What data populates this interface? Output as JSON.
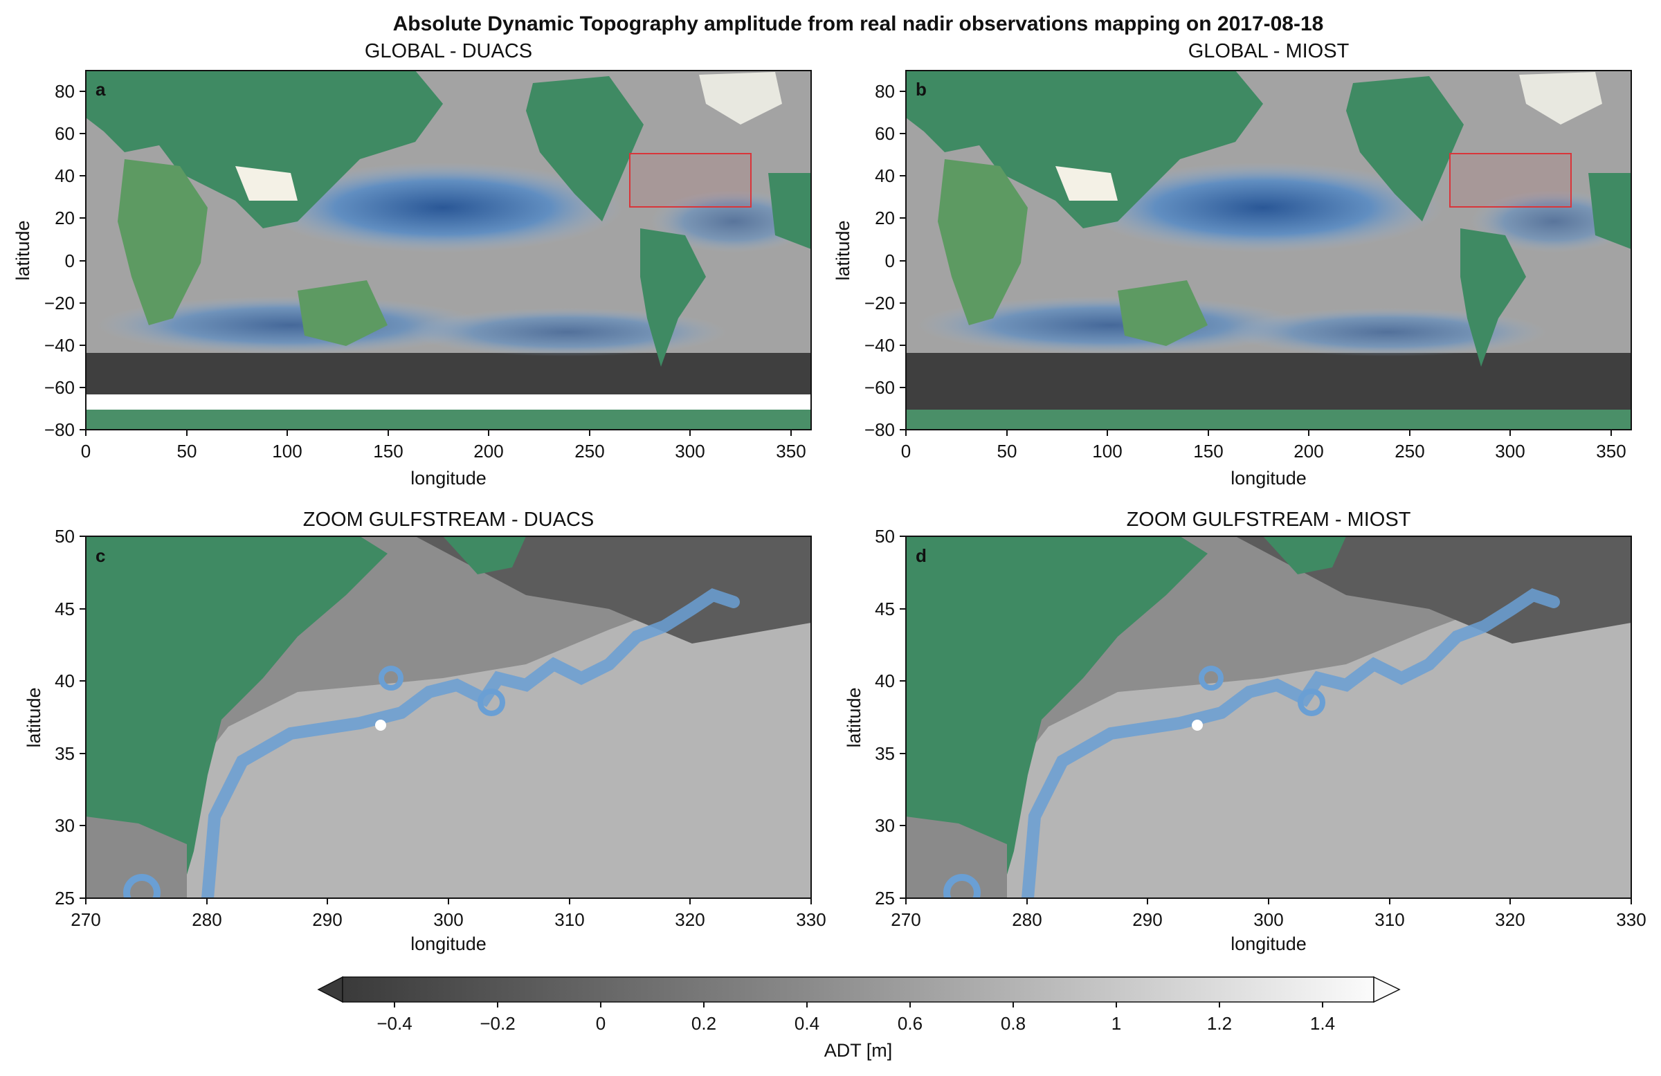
{
  "figure": {
    "suptitle": "Absolute Dynamic Topography amplitude from real nadir observations mapping on 2017-08-18"
  },
  "panels": [
    {
      "letter": "a",
      "title": "GLOBAL - DUACS",
      "xlabel": "longitude",
      "ylabel": "latitude",
      "xticks": [
        "0",
        "50",
        "100",
        "150",
        "200",
        "250",
        "300",
        "350"
      ],
      "yticks": [
        "80",
        "60",
        "40",
        "20",
        "0",
        "−20",
        "−40",
        "−60",
        "−80"
      ]
    },
    {
      "letter": "b",
      "title": "GLOBAL - MIOST",
      "xlabel": "longitude",
      "ylabel": "latitude",
      "xticks": [
        "0",
        "50",
        "100",
        "150",
        "200",
        "250",
        "300",
        "350"
      ],
      "yticks": [
        "80",
        "60",
        "40",
        "20",
        "0",
        "−20",
        "−40",
        "−60",
        "−80"
      ]
    },
    {
      "letter": "c",
      "title": "ZOOM GULFSTREAM - DUACS",
      "xlabel": "longitude",
      "ylabel": "latitude",
      "xticks": [
        "270",
        "280",
        "290",
        "300",
        "310",
        "320",
        "330"
      ],
      "yticks": [
        "50",
        "45",
        "40",
        "35",
        "30",
        "25"
      ]
    },
    {
      "letter": "d",
      "title": "ZOOM GULFSTREAM - MIOST",
      "xlabel": "longitude",
      "ylabel": "latitude",
      "xticks": [
        "270",
        "280",
        "290",
        "300",
        "310",
        "320",
        "330"
      ],
      "yticks": [
        "50",
        "45",
        "40",
        "35",
        "30",
        "25"
      ]
    }
  ],
  "colorbar": {
    "label": "ADT [m]",
    "ticks": [
      "−0.4",
      "−0.2",
      "0",
      "0.2",
      "0.4",
      "0.6",
      "0.8",
      "1",
      "1.2",
      "1.4"
    ]
  },
  "colors": {
    "land": "#3f8a63",
    "land_high": "#a8b564",
    "ocean_low": "#3d3d3d",
    "ocean_mid": "#9a9a9a",
    "ocean_high": "#f2f2f2",
    "contour_blue": "#2b6fb6",
    "box_red": "#d9353a"
  }
}
